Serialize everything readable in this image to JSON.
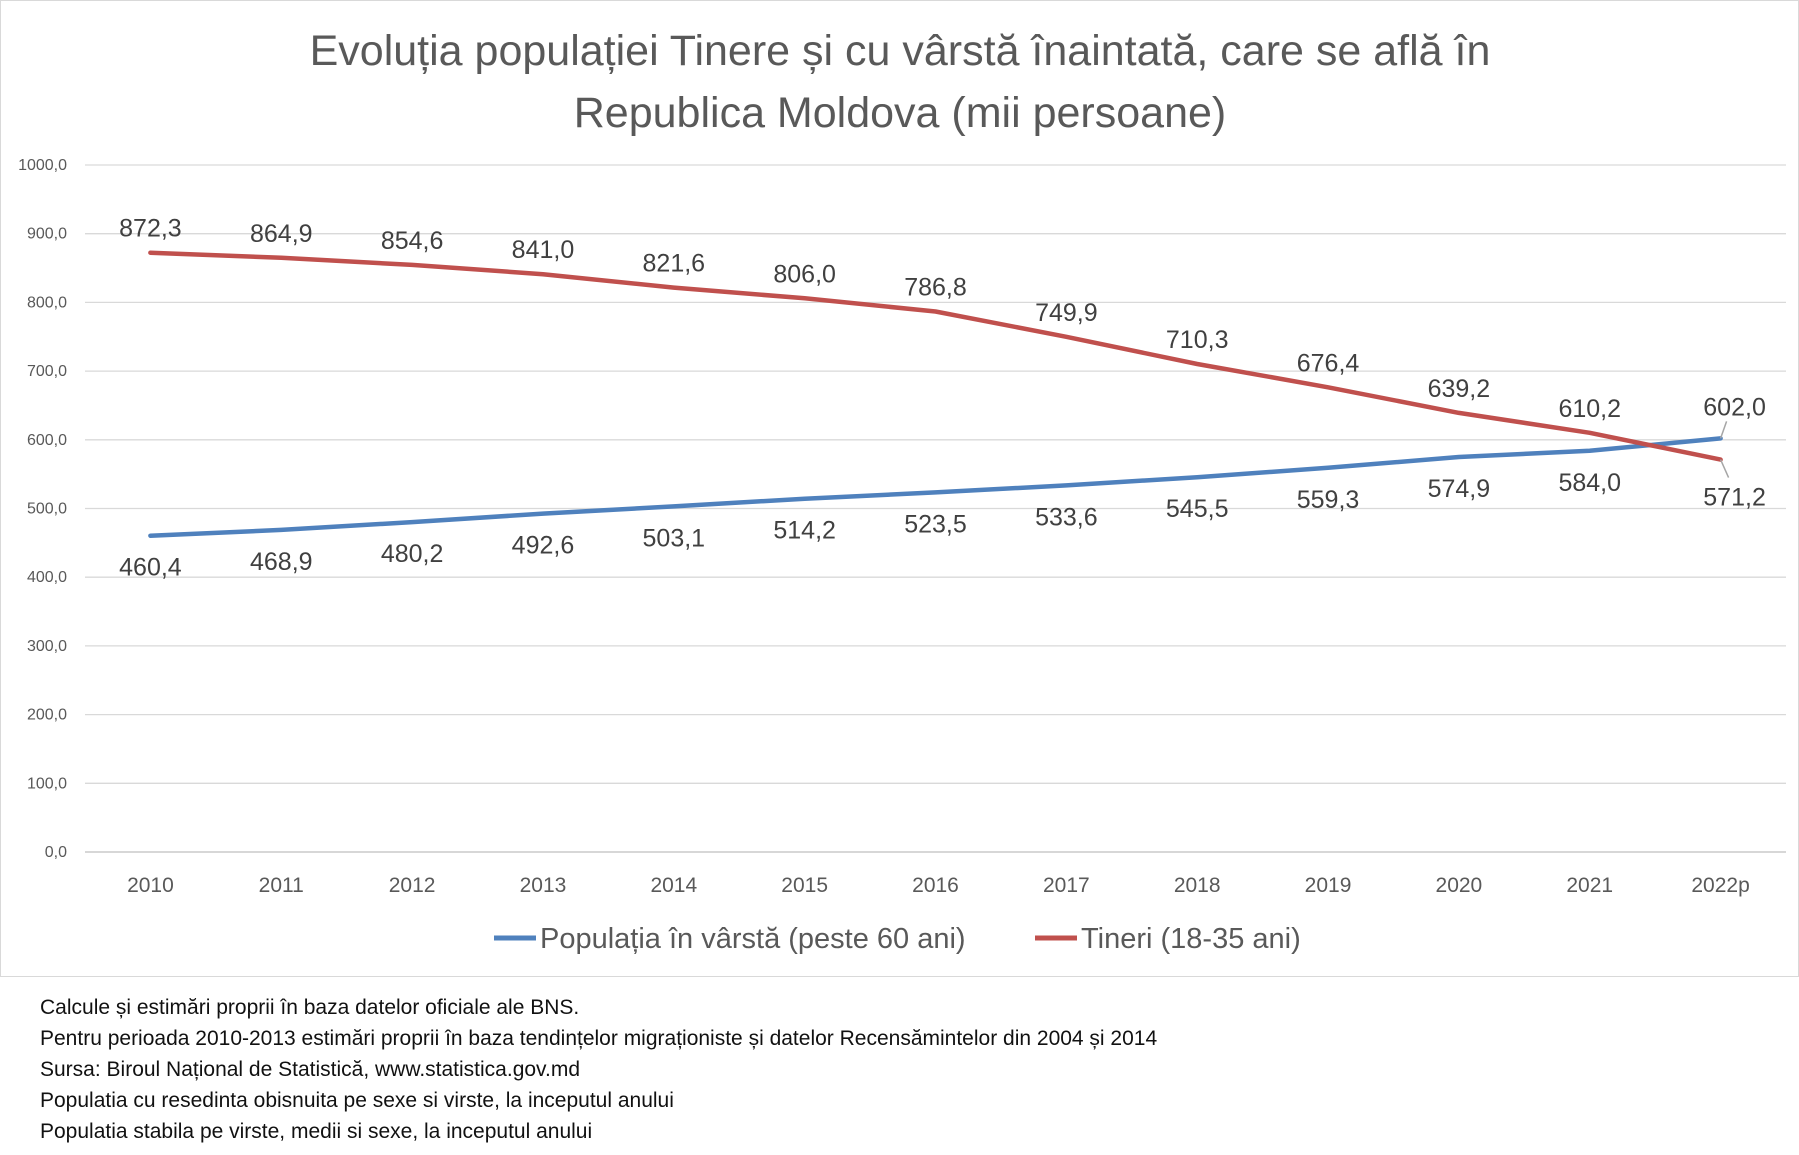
{
  "chart_data": {
    "type": "line",
    "title_lines": [
      "Evoluția populației Tinere și cu vârstă înaintată, care se află în",
      "Republica Moldova (mii persoane)"
    ],
    "categories": [
      "2010",
      "2011",
      "2012",
      "2013",
      "2014",
      "2015",
      "2016",
      "2017",
      "2018",
      "2019",
      "2020",
      "2021",
      "2022p"
    ],
    "series": [
      {
        "name": "Populația în vârstă (peste 60 ani)",
        "color": "#4f81bd",
        "values": [
          460.4,
          468.9,
          480.2,
          492.6,
          503.1,
          514.2,
          523.5,
          533.6,
          545.5,
          559.3,
          574.9,
          584.0,
          602.0
        ],
        "labels": [
          "460,4",
          "468,9",
          "480,2",
          "492,6",
          "503,1",
          "514,2",
          "523,5",
          "533,6",
          "545,5",
          "559,3",
          "574,9",
          "584,0",
          "602,0"
        ]
      },
      {
        "name": "Tineri (18-35 ani)",
        "color": "#c0504d",
        "values": [
          872.3,
          864.9,
          854.6,
          841.0,
          821.6,
          806.0,
          786.8,
          749.9,
          710.3,
          676.4,
          639.2,
          610.2,
          571.2
        ],
        "labels": [
          "872,3",
          "864,9",
          "854,6",
          "841,0",
          "821,6",
          "806,0",
          "786,8",
          "749,9",
          "710,3",
          "676,4",
          "639,2",
          "610,2",
          "571,2"
        ]
      }
    ],
    "ylim": [
      0,
      1000
    ],
    "y_ticks": [
      0,
      100,
      200,
      300,
      400,
      500,
      600,
      700,
      800,
      900,
      1000
    ],
    "y_tick_labels": [
      "0,0",
      "100,0",
      "200,0",
      "300,0",
      "400,0",
      "500,0",
      "600,0",
      "700,0",
      "800,0",
      "900,0",
      "1000,0"
    ],
    "grid": true,
    "legend": "bottom"
  },
  "notes": [
    "Calcule și estimări proprii în baza datelor oficiale ale BNS.",
    "Pentru perioada 2010-2013 estimări proprii în baza tendințelor migraționiste și datelor Recensămintelor din 2004 și 2014",
    "Sursa: Biroul Național de Statistică, www.statistica.gov.md",
    "Populatia cu resedinta obisnuita pe sexe si virste, la inceputul anului",
    "Populatia stabila pe virste, medii si sexe, la inceputul anului"
  ]
}
